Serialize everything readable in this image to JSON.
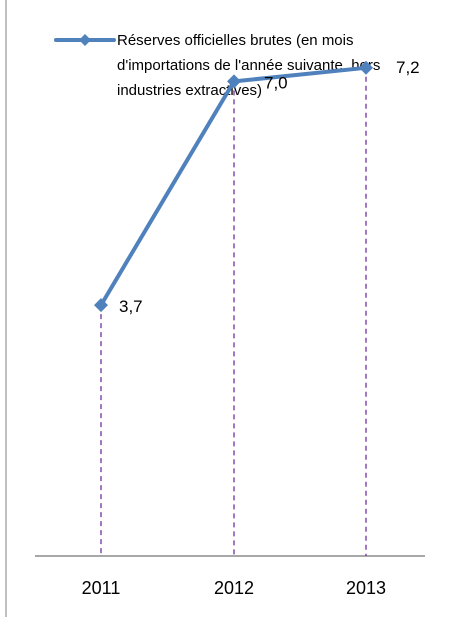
{
  "chart_data": {
    "type": "line",
    "categories": [
      "2011",
      "2012",
      "2013"
    ],
    "series": [
      {
        "name": "Réserves officielles brutes (en mois d'importations de l'année suivante, hors industries extractives)",
        "values": [
          3.7,
          7.0,
          7.2
        ],
        "value_labels": [
          "3,7",
          "7,0",
          "7,2"
        ]
      }
    ],
    "legend": {
      "lines": [
        "Réserves officielles brutes (en mois",
        "d'importations de l'année suivante, hors",
        "industries extractives)"
      ],
      "position": "top-left"
    },
    "ylim": [
      0,
      8.2
    ],
    "grid": false,
    "drop_lines": true,
    "colors": {
      "series": "#4f81bd",
      "marker": "#4f81bd",
      "drop_line": "#7030a0",
      "axis": "#8c8c8c",
      "frame": "#7f7f7f",
      "text": "#000000"
    }
  }
}
